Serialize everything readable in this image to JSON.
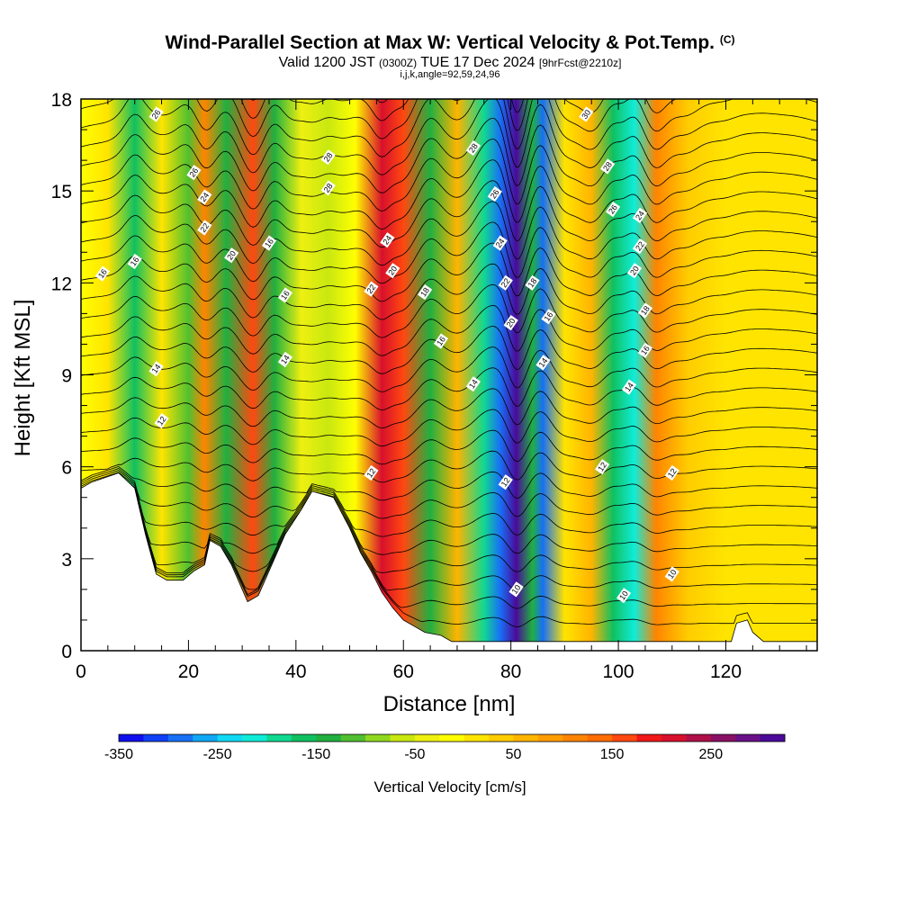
{
  "header": {
    "title_main": "Wind-Parallel Section at Max W: Vertical Velocity & Pot.Temp.",
    "title_mark": "(C)",
    "valid_a": "Valid 1200 JST",
    "valid_b": "(0300Z)",
    "valid_c": "TUE 17 Dec 2024",
    "valid_d": "[9hrFcst@2210z]",
    "indices": "i,j,k,angle=92,59,24,96"
  },
  "chart_data": {
    "type": "heatmap",
    "xlabel": "Distance [nm]",
    "ylabel": "Height [Kft MSL]",
    "xlim": [
      0,
      137
    ],
    "ylim": [
      0,
      18
    ],
    "x_ticks": [
      0,
      20,
      40,
      60,
      80,
      100,
      120
    ],
    "y_ticks": [
      0,
      3,
      6,
      9,
      12,
      15,
      18
    ],
    "colorbar": {
      "label": "Vertical Velocity [cm/s]",
      "range": [
        -350,
        325
      ],
      "tick_values": [
        -350,
        -250,
        -150,
        -50,
        50,
        150,
        250
      ],
      "tick_labels": [
        "-350",
        "-250",
        "-150",
        "-50",
        "50",
        "150",
        "250"
      ],
      "colors": [
        "#1010ee",
        "#1040f5",
        "#1870f5",
        "#10a8f5",
        "#10d8f5",
        "#10ecd8",
        "#10d890",
        "#10c060",
        "#20b040",
        "#50c030",
        "#90d820",
        "#c8e810",
        "#eef010",
        "#ffff00",
        "#ffe400",
        "#ffcc00",
        "#ffb400",
        "#ff9c00",
        "#ff8400",
        "#ff6c00",
        "#ff4810",
        "#f01818",
        "#d8102c",
        "#b01048",
        "#8a1064",
        "#6a1088",
        "#4a0a9a"
      ]
    },
    "velocity_bands": [
      {
        "x": 0,
        "w": -10
      },
      {
        "x": 5,
        "w": 10
      },
      {
        "x": 10,
        "w": -170
      },
      {
        "x": 15,
        "w": 20
      },
      {
        "x": 20,
        "w": -110
      },
      {
        "x": 23,
        "w": 110
      },
      {
        "x": 27,
        "w": -130
      },
      {
        "x": 32,
        "w": 170
      },
      {
        "x": 36,
        "w": -150
      },
      {
        "x": 41,
        "w": -40
      },
      {
        "x": 46,
        "w": -60
      },
      {
        "x": 51,
        "w": -20
      },
      {
        "x": 56,
        "w": 210
      },
      {
        "x": 60,
        "w": 150
      },
      {
        "x": 65,
        "w": -150
      },
      {
        "x": 70,
        "w": 60
      },
      {
        "x": 75,
        "w": -200
      },
      {
        "x": 78,
        "w": -290
      },
      {
        "x": 81,
        "w": 320
      },
      {
        "x": 84,
        "w": -150
      },
      {
        "x": 86,
        "w": -300
      },
      {
        "x": 90,
        "w": 10
      },
      {
        "x": 95,
        "w": 60
      },
      {
        "x": 99,
        "w": -160
      },
      {
        "x": 103,
        "w": -210
      },
      {
        "x": 107,
        "w": 100
      },
      {
        "x": 113,
        "w": 40
      },
      {
        "x": 120,
        "w": 20
      },
      {
        "x": 130,
        "w": 5
      },
      {
        "x": 137,
        "w": 0
      }
    ],
    "terrain_kft": [
      {
        "x": 0,
        "h": 5.3
      },
      {
        "x": 2,
        "h": 5.5
      },
      {
        "x": 7,
        "h": 5.8
      },
      {
        "x": 10,
        "h": 5.3
      },
      {
        "x": 12,
        "h": 3.8
      },
      {
        "x": 14,
        "h": 2.5
      },
      {
        "x": 16,
        "h": 2.3
      },
      {
        "x": 19,
        "h": 2.3
      },
      {
        "x": 21,
        "h": 2.6
      },
      {
        "x": 23,
        "h": 2.8
      },
      {
        "x": 24,
        "h": 3.6
      },
      {
        "x": 26,
        "h": 3.4
      },
      {
        "x": 28,
        "h": 2.8
      },
      {
        "x": 30,
        "h": 2.0
      },
      {
        "x": 31,
        "h": 1.6
      },
      {
        "x": 33,
        "h": 1.8
      },
      {
        "x": 35,
        "h": 2.6
      },
      {
        "x": 38,
        "h": 3.8
      },
      {
        "x": 41,
        "h": 4.6
      },
      {
        "x": 43,
        "h": 5.2
      },
      {
        "x": 47,
        "h": 5.0
      },
      {
        "x": 50,
        "h": 4.0
      },
      {
        "x": 52,
        "h": 3.2
      },
      {
        "x": 54,
        "h": 2.6
      },
      {
        "x": 56,
        "h": 1.9
      },
      {
        "x": 58,
        "h": 1.4
      },
      {
        "x": 60,
        "h": 1.0
      },
      {
        "x": 62,
        "h": 0.8
      },
      {
        "x": 64,
        "h": 0.6
      },
      {
        "x": 67,
        "h": 0.5
      },
      {
        "x": 69,
        "h": 0.3
      },
      {
        "x": 70,
        "h": 0.3
      },
      {
        "x": 121,
        "h": 0.3
      },
      {
        "x": 122,
        "h": 0.9
      },
      {
        "x": 124,
        "h": 1.0
      },
      {
        "x": 125,
        "h": 0.6
      },
      {
        "x": 127,
        "h": 0.3
      },
      {
        "x": 137,
        "h": 0.3
      }
    ],
    "theta_contour_levels": [
      10,
      12,
      14,
      16,
      18,
      20,
      22,
      24,
      26,
      28,
      30
    ],
    "contour_labels": [
      {
        "x": 4,
        "y": 12.3,
        "text": "16"
      },
      {
        "x": 10,
        "y": 12.7,
        "text": "16"
      },
      {
        "x": 14,
        "y": 17.5,
        "text": "26"
      },
      {
        "x": 21,
        "y": 15.6,
        "text": "26"
      },
      {
        "x": 23,
        "y": 14.8,
        "text": "24"
      },
      {
        "x": 23,
        "y": 13.8,
        "text": "22"
      },
      {
        "x": 28,
        "y": 12.9,
        "text": "20"
      },
      {
        "x": 35,
        "y": 13.3,
        "text": "16"
      },
      {
        "x": 38,
        "y": 11.6,
        "text": "16"
      },
      {
        "x": 38,
        "y": 9.5,
        "text": "14"
      },
      {
        "x": 14,
        "y": 9.2,
        "text": "14"
      },
      {
        "x": 15,
        "y": 7.5,
        "text": "12"
      },
      {
        "x": 46,
        "y": 16.1,
        "text": "28"
      },
      {
        "x": 46,
        "y": 15.1,
        "text": "28"
      },
      {
        "x": 54,
        "y": 11.8,
        "text": "22"
      },
      {
        "x": 57,
        "y": 13.4,
        "text": "24"
      },
      {
        "x": 58,
        "y": 12.4,
        "text": "20"
      },
      {
        "x": 64,
        "y": 11.7,
        "text": "18"
      },
      {
        "x": 67,
        "y": 10.1,
        "text": "16"
      },
      {
        "x": 73,
        "y": 8.7,
        "text": "14"
      },
      {
        "x": 73,
        "y": 16.4,
        "text": "28"
      },
      {
        "x": 77,
        "y": 14.9,
        "text": "26"
      },
      {
        "x": 78,
        "y": 13.3,
        "text": "24"
      },
      {
        "x": 79,
        "y": 12.0,
        "text": "22"
      },
      {
        "x": 80,
        "y": 10.7,
        "text": "20"
      },
      {
        "x": 84,
        "y": 12.0,
        "text": "18"
      },
      {
        "x": 87,
        "y": 10.9,
        "text": "16"
      },
      {
        "x": 86,
        "y": 9.4,
        "text": "14"
      },
      {
        "x": 79,
        "y": 5.5,
        "text": "12"
      },
      {
        "x": 81,
        "y": 2.0,
        "text": "10"
      },
      {
        "x": 54,
        "y": 5.8,
        "text": "12"
      },
      {
        "x": 94,
        "y": 17.5,
        "text": "30"
      },
      {
        "x": 98,
        "y": 15.8,
        "text": "28"
      },
      {
        "x": 99,
        "y": 14.4,
        "text": "26"
      },
      {
        "x": 104,
        "y": 14.2,
        "text": "24"
      },
      {
        "x": 104,
        "y": 13.2,
        "text": "22"
      },
      {
        "x": 103,
        "y": 12.4,
        "text": "20"
      },
      {
        "x": 105,
        "y": 11.1,
        "text": "18"
      },
      {
        "x": 105,
        "y": 9.8,
        "text": "16"
      },
      {
        "x": 102,
        "y": 8.6,
        "text": "14"
      },
      {
        "x": 97,
        "y": 6.0,
        "text": "12"
      },
      {
        "x": 110,
        "y": 5.8,
        "text": "12"
      },
      {
        "x": 101,
        "y": 1.8,
        "text": "10"
      },
      {
        "x": 110,
        "y": 2.5,
        "text": "10"
      }
    ]
  }
}
